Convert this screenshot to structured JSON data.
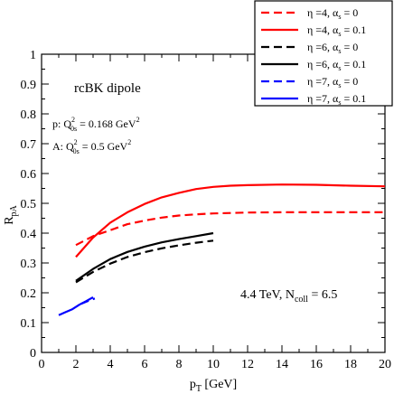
{
  "chart_data": {
    "type": "line",
    "xlabel": "p",
    "xlabel_sub": "T",
    "xlabel_unit": "[GeV]",
    "ylabel": "R",
    "ylabel_sub": "pA",
    "xlim": [
      0,
      20
    ],
    "ylim": [
      0,
      1
    ],
    "xticks": [
      "0",
      "2",
      "4",
      "6",
      "8",
      "10",
      "12",
      "14",
      "16",
      "18",
      "20"
    ],
    "yticks": [
      "0",
      "0.1",
      "0.2",
      "0.3",
      "0.4",
      "0.5",
      "0.6",
      "0.7",
      "0.8",
      "0.9",
      "1"
    ],
    "grid": false,
    "legend_position": "top-right",
    "annotations": {
      "model": "rcBK dipole",
      "p_label": "p:  Q",
      "p_sup": "2",
      "p_sub": "0s",
      "p_value": " = 0.168 GeV",
      "p_unit_sup": "2",
      "a_label": "A:  Q",
      "a_sup": "2",
      "a_sub": "0s",
      "a_value": " = 0.5 GeV",
      "a_unit_sup": "2",
      "energy": "4.4 TeV,  N",
      "energy_sub": "coll",
      "energy_value": " = 6.5"
    },
    "series": [
      {
        "name": "η =4, α",
        "name_sub": "s",
        "name_val": " = 0",
        "color": "#ff0000",
        "dash": true,
        "x": [
          2,
          3,
          4,
          5,
          6,
          7,
          8,
          9,
          10,
          12,
          14,
          16,
          18,
          20
        ],
        "y": [
          0.36,
          0.39,
          0.41,
          0.43,
          0.442,
          0.452,
          0.459,
          0.463,
          0.466,
          0.469,
          0.47,
          0.47,
          0.47,
          0.47
        ]
      },
      {
        "name": "η =4, α",
        "name_sub": "s",
        "name_val": " = 0.1",
        "color": "#ff0000",
        "dash": false,
        "x": [
          2,
          3,
          4,
          5,
          6,
          7,
          8,
          9,
          10,
          11,
          12,
          14,
          16,
          18,
          20
        ],
        "y": [
          0.32,
          0.385,
          0.435,
          0.47,
          0.498,
          0.52,
          0.535,
          0.548,
          0.555,
          0.559,
          0.561,
          0.563,
          0.562,
          0.559,
          0.557
        ]
      },
      {
        "name": "η =6,  α",
        "name_sub": "s",
        "name_val": " = 0",
        "color": "#000000",
        "dash": true,
        "x": [
          2,
          3,
          4,
          5,
          6,
          7,
          8,
          9,
          10
        ],
        "y": [
          0.235,
          0.27,
          0.298,
          0.32,
          0.336,
          0.349,
          0.359,
          0.368,
          0.375
        ]
      },
      {
        "name": "η =6,  α",
        "name_sub": "s",
        "name_val": " = 0.1",
        "color": "#000000",
        "dash": false,
        "x": [
          2,
          3,
          4,
          5,
          6,
          7,
          8,
          9,
          10
        ],
        "y": [
          0.24,
          0.28,
          0.313,
          0.337,
          0.355,
          0.369,
          0.38,
          0.39,
          0.4
        ]
      },
      {
        "name": "η =7,  α",
        "name_sub": "s",
        "name_val": " = 0",
        "color": "#0000ff",
        "dash": true,
        "x": [
          2.3,
          2.6,
          2.9,
          3.1
        ],
        "y": [
          0.163,
          0.17,
          0.177,
          0.181
        ]
      },
      {
        "name": "η =7,  α",
        "name_sub": "s",
        "name_val": " = 0.1",
        "color": "#0000ff",
        "dash": false,
        "x": [
          1.0,
          1.4,
          1.8,
          2.2,
          2.6,
          3.0
        ],
        "y": [
          0.125,
          0.135,
          0.145,
          0.16,
          0.172,
          0.185
        ]
      }
    ]
  }
}
